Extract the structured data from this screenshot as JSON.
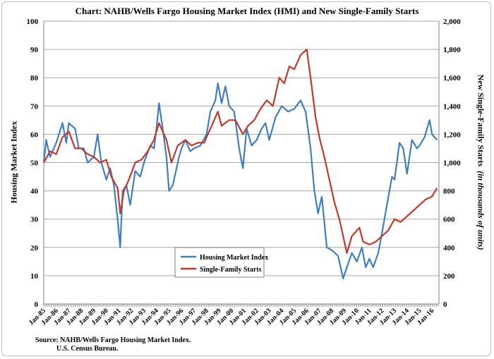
{
  "chart_data": {
    "type": "line",
    "title": "Chart:  NAHB/Wells Fargo Housing Market Index (HMI) and New Single-Family Starts",
    "ylabel": "Housing Market Index",
    "y2label": "New Single-Family Starts",
    "y2label_units": "(in thousands of units)",
    "ylim": [
      0,
      100
    ],
    "y2lim": [
      0,
      2000
    ],
    "yticks": [
      "0",
      "10",
      "20",
      "30",
      "40",
      "50",
      "60",
      "70",
      "80",
      "90",
      "100"
    ],
    "y2ticks": [
      "0",
      "200",
      "400",
      "600",
      "800",
      "1,000",
      "1,200",
      "1,400",
      "1,600",
      "1,800",
      "2,000"
    ],
    "xticks": [
      "Jan-85",
      "Jan-86",
      "Jan-87",
      "Jan-88",
      "Jan-89",
      "Jan-90",
      "Jan-91",
      "Jan-92",
      "Jan-93",
      "Jan-94",
      "Jan-95",
      "Jan-96",
      "Jan-97",
      "Jan-98",
      "Jan-99",
      "Jan-00",
      "Jan-01",
      "Jan-02",
      "Jan-03",
      "Jan-04",
      "Jan-05",
      "Jan-06",
      "Jan-07",
      "Jan-08",
      "Jan-09",
      "Jan-10",
      "Jan-11",
      "Jan-12",
      "Jan-13",
      "Jan-14",
      "Jan-15",
      "Jan-16"
    ],
    "grid": true,
    "legend": "bottom-center",
    "series": [
      {
        "name": "Housing Market Index",
        "axis": "left",
        "color": "#3f7fc0",
        "x": [
          1985.0,
          1985.2,
          1985.5,
          1986.0,
          1986.5,
          1986.8,
          1987.0,
          1987.5,
          1987.8,
          1988.2,
          1988.5,
          1989.0,
          1989.3,
          1989.6,
          1990.0,
          1990.3,
          1990.6,
          1990.9,
          1991.1,
          1991.3,
          1991.6,
          1991.9,
          1992.3,
          1992.7,
          1993.0,
          1993.5,
          1993.8,
          1994.0,
          1994.2,
          1994.5,
          1994.8,
          1995.0,
          1995.3,
          1995.8,
          1996.0,
          1996.3,
          1996.7,
          1997.0,
          1997.5,
          1998.0,
          1998.3,
          1998.7,
          1998.9,
          1999.2,
          1999.5,
          1999.8,
          2000.2,
          2000.6,
          2000.9,
          2001.2,
          2001.6,
          2002.0,
          2002.4,
          2002.7,
          2003.0,
          2003.5,
          2004.0,
          2004.5,
          2005.0,
          2005.5,
          2005.9,
          2006.3,
          2006.6,
          2006.9,
          2007.2,
          2007.6,
          2008.0,
          2008.5,
          2008.9,
          2009.2,
          2009.6,
          2010.0,
          2010.4,
          2010.7,
          2011.0,
          2011.3,
          2011.7,
          2012.0,
          2012.4,
          2012.8,
          2013.0,
          2013.4,
          2013.7,
          2014.0,
          2014.4,
          2014.8,
          2015.0,
          2015.4,
          2015.8,
          2016.0,
          2016.4
        ],
        "values": [
          50,
          58,
          52,
          57,
          64,
          57,
          64,
          62,
          55,
          55,
          50,
          52,
          60,
          50,
          44,
          48,
          42,
          30,
          20,
          40,
          42,
          35,
          47,
          45,
          50,
          56,
          55,
          62,
          71,
          62,
          52,
          40,
          42,
          52,
          55,
          58,
          54,
          55,
          56,
          60,
          68,
          72,
          78,
          71,
          77,
          70,
          68,
          55,
          48,
          62,
          56,
          58,
          62,
          64,
          58,
          66,
          70,
          68,
          69,
          72,
          68,
          55,
          40,
          32,
          38,
          20,
          19,
          17,
          9,
          13,
          18,
          15,
          20,
          13,
          16,
          13,
          18,
          25,
          35,
          45,
          44,
          57,
          55,
          46,
          58,
          55,
          56,
          59,
          65,
          60,
          58
        ]
      },
      {
        "name": "Single-Family Starts",
        "axis": "right",
        "color": "#c0392b",
        "x": [
          1985.0,
          1985.5,
          1986.0,
          1986.5,
          1987.0,
          1987.5,
          1988.0,
          1988.5,
          1989.0,
          1989.5,
          1990.0,
          1990.4,
          1990.9,
          1991.1,
          1991.4,
          1991.8,
          1992.3,
          1992.8,
          1993.3,
          1993.8,
          1994.2,
          1994.8,
          1995.2,
          1995.7,
          1996.3,
          1996.8,
          1997.3,
          1997.8,
          1998.3,
          1998.9,
          1999.2,
          1999.8,
          2000.3,
          2000.9,
          2001.3,
          2001.8,
          2002.3,
          2002.8,
          2003.3,
          2003.8,
          2004.2,
          2004.6,
          2005.0,
          2005.5,
          2006.0,
          2006.3,
          2006.7,
          2007.0,
          2007.4,
          2007.8,
          2008.2,
          2008.6,
          2009.0,
          2009.2,
          2009.6,
          2010.2,
          2010.5,
          2011.0,
          2011.5,
          2012.0,
          2012.5,
          2013.0,
          2013.5,
          2014.0,
          2014.5,
          2015.0,
          2015.5,
          2016.0,
          2016.4
        ],
        "values": [
          1000,
          1080,
          1060,
          1180,
          1220,
          1100,
          1100,
          1060,
          1040,
          1000,
          1020,
          900,
          820,
          640,
          800,
          880,
          1000,
          1020,
          1080,
          1160,
          1280,
          1160,
          1000,
          1120,
          1160,
          1120,
          1140,
          1140,
          1240,
          1360,
          1260,
          1300,
          1300,
          1200,
          1260,
          1300,
          1380,
          1440,
          1400,
          1600,
          1560,
          1680,
          1660,
          1760,
          1800,
          1600,
          1320,
          1180,
          1040,
          880,
          720,
          600,
          440,
          360,
          480,
          540,
          440,
          420,
          440,
          480,
          520,
          600,
          580,
          620,
          660,
          700,
          740,
          760,
          820
        ]
      }
    ]
  },
  "source": {
    "line1": "Source: NAHB/Wells Fargo  Housing Market Index.",
    "line2": "U.S. Census Bureau."
  }
}
